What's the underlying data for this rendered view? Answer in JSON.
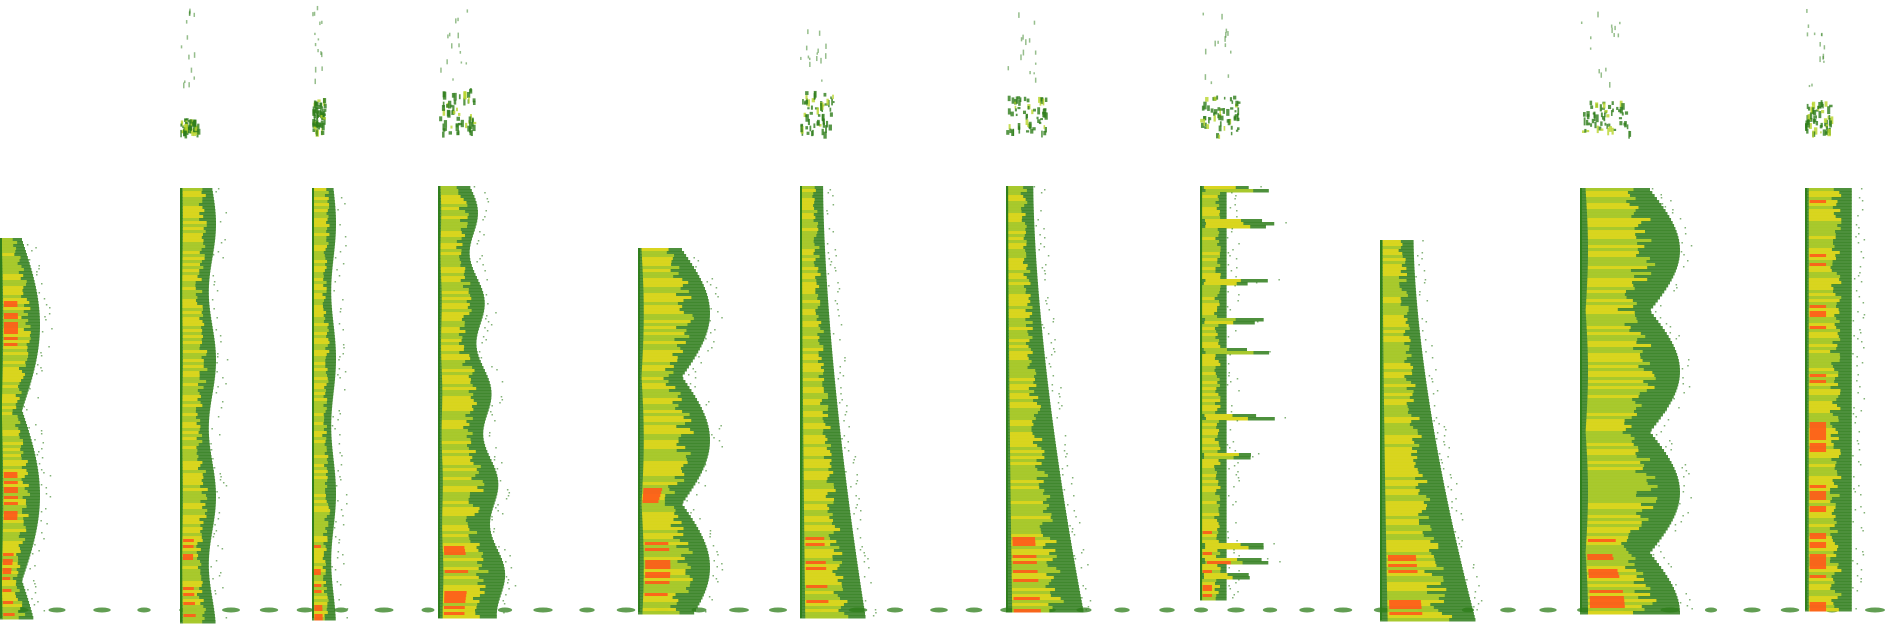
{
  "image": {
    "kind": "spectrogram-montage",
    "background_color": "#ffffff",
    "palette": {
      "low": "#2e7d1a",
      "mid": "#b8d42a",
      "high": "#f2e21a",
      "peak": "#ff5a1a"
    },
    "segment_count": 11
  }
}
